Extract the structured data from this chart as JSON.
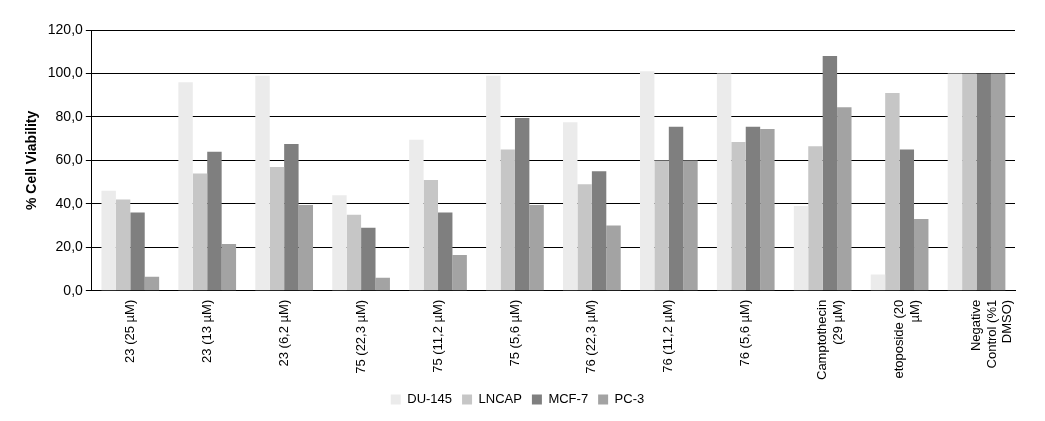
{
  "chart_data": {
    "type": "bar",
    "ylabel": "% Cell Viability",
    "categories": [
      "23 (25 µM)",
      "23 (13 µM)",
      "23 (6,2 µM)",
      "75 (22,3 µM)",
      "75 (11,2 µM)",
      "75 (5,6 µM)",
      "76 (22,3 µM)",
      "76 (11,2 µM)",
      "76 (5,6 µM)",
      "Camptothecin (29 µM)",
      "etoposide (20 µM)",
      "Negative Control (%1 DMSO)"
    ],
    "series": [
      {
        "name": "DU-145",
        "color": "#ebebeb",
        "values": [
          46,
          96,
          99,
          44,
          69.5,
          99,
          77.5,
          101,
          100,
          39,
          7.5,
          100
        ]
      },
      {
        "name": "LNCAP",
        "color": "#c6c6c6",
        "values": [
          42,
          54,
          57,
          35,
          51,
          65,
          49,
          60,
          68.5,
          66.5,
          91,
          100
        ]
      },
      {
        "name": "MCF-7",
        "color": "#7f7f7f",
        "values": [
          36,
          64,
          67.5,
          29,
          36,
          79.5,
          55,
          75.5,
          75.5,
          108,
          65,
          100
        ]
      },
      {
        "name": "PC-3",
        "color": "#a3a3a3",
        "values": [
          6.5,
          21.5,
          39.5,
          6,
          16.5,
          39.5,
          30,
          60,
          74.5,
          84.5,
          33,
          100
        ]
      }
    ],
    "ylim": [
      0,
      120
    ],
    "yticks": [
      {
        "value": 0,
        "label": "0,0"
      },
      {
        "value": 20,
        "label": "20,0"
      },
      {
        "value": 40,
        "label": "40,0"
      },
      {
        "value": 60,
        "label": "60,0"
      },
      {
        "value": 80,
        "label": "80,0"
      },
      {
        "value": 100,
        "label": "100,0"
      },
      {
        "value": 120,
        "label": "120,0"
      }
    ],
    "grid": "y",
    "legend": "bottom"
  }
}
